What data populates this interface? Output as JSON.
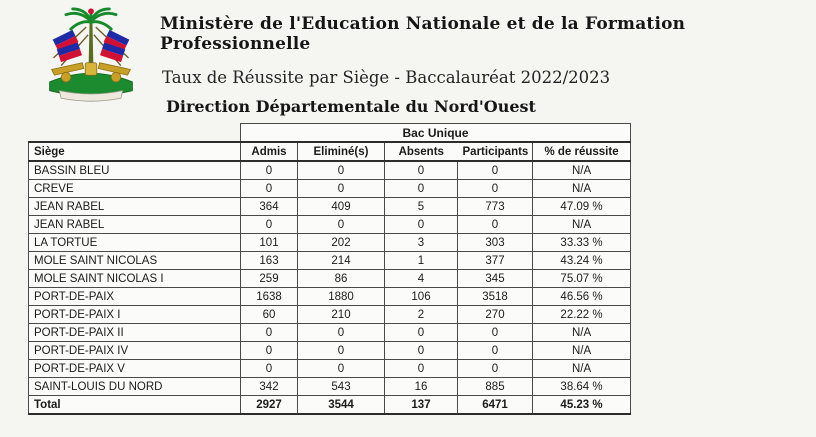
{
  "header": {
    "title": "Ministère de l'Education Nationale et de la Formation Professionnelle",
    "subtitle": "Taux de Réussite par Siège - Baccalauréat 2022/2023",
    "department": "Direction Départementale du Nord'Ouest",
    "logo": "haiti-coat-of-arms"
  },
  "table": {
    "group_header": "Bac Unique",
    "columns": [
      "Siège",
      "Admis",
      "Eliminé(s)",
      "Absents",
      "Participants",
      "% de réussite"
    ],
    "rows": [
      [
        "BASSIN BLEU",
        "0",
        "0",
        "0",
        "0",
        "N/A"
      ],
      [
        "CREVE",
        "0",
        "0",
        "0",
        "0",
        "N/A"
      ],
      [
        "JEAN RABEL",
        "364",
        "409",
        "5",
        "773",
        "47.09 %"
      ],
      [
        "JEAN RABEL",
        "0",
        "0",
        "0",
        "0",
        "N/A"
      ],
      [
        "LA TORTUE",
        "101",
        "202",
        "3",
        "303",
        "33.33 %"
      ],
      [
        "MOLE SAINT NICOLAS",
        "163",
        "214",
        "1",
        "377",
        "43.24 %"
      ],
      [
        "MOLE SAINT NICOLAS I",
        "259",
        "86",
        "4",
        "345",
        "75.07 %"
      ],
      [
        "PORT-DE-PAIX",
        "1638",
        "1880",
        "106",
        "3518",
        "46.56 %"
      ],
      [
        "PORT-DE-PAIX I",
        "60",
        "210",
        "2",
        "270",
        "22.22 %"
      ],
      [
        "PORT-DE-PAIX II",
        "0",
        "0",
        "0",
        "0",
        "N/A"
      ],
      [
        "PORT-DE-PAIX IV",
        "0",
        "0",
        "0",
        "0",
        "N/A"
      ],
      [
        "PORT-DE-PAIX V",
        "0",
        "0",
        "0",
        "0",
        "N/A"
      ],
      [
        "SAINT-LOUIS DU NORD",
        "342",
        "543",
        "16",
        "885",
        "38.64 %"
      ]
    ],
    "total_row": [
      "Total",
      "2927",
      "3544",
      "137",
      "6471",
      "45.23 %"
    ]
  },
  "colors": {
    "flag_blue": "#1f2aa6",
    "flag_red": "#d21034",
    "leaf_green": "#178a2c",
    "gold": "#c8a028",
    "table_border": "#4a4a4a",
    "page_background": "#f5f5f2"
  }
}
